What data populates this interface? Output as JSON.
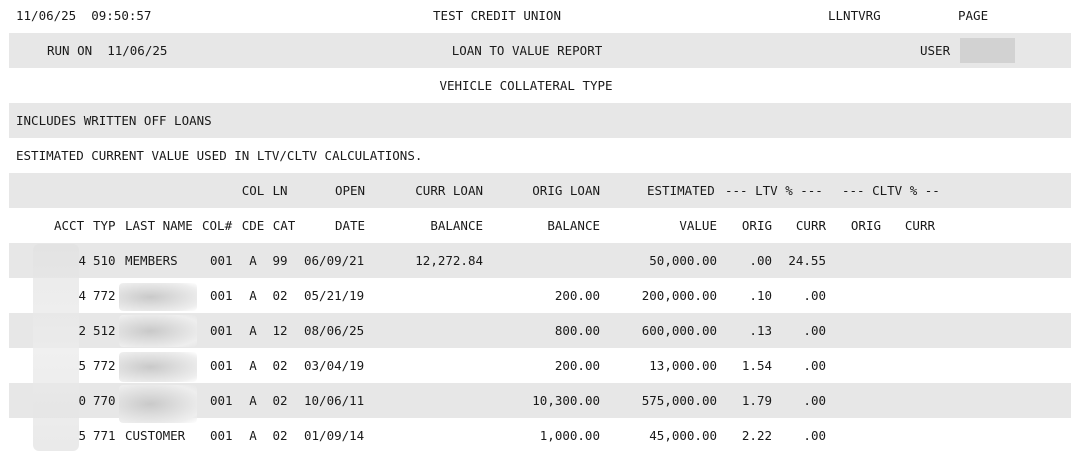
{
  "header": {
    "datetime": "11/06/25  09:50:57",
    "org": "TEST CREDIT UNION",
    "program": "LLNTVRG",
    "page_label": "PAGE",
    "run_on": "RUN ON  11/06/25",
    "report_title": "LOAN TO VALUE REPORT",
    "user_label": "USER",
    "collateral_type": "VEHICLE COLLATERAL TYPE",
    "note1": "INCLUDES WRITTEN OFF LOANS",
    "note2": "ESTIMATED CURRENT VALUE USED IN LTV/CLTV CALCULATIONS."
  },
  "columns": {
    "top": {
      "col": "COL",
      "ln": "LN",
      "open": "OPEN",
      "curr_loan": "CURR LOAN",
      "orig_loan": "ORIG LOAN",
      "estimated": "ESTIMATED",
      "ltv_group": "--- LTV % ---",
      "cltv_group": "--- CLTV % --"
    },
    "bottom": {
      "acct": "ACCT",
      "typ": "TYP",
      "last_name": "LAST NAME",
      "col_num": "COL#",
      "cde": "CDE",
      "cat": "CAT",
      "date": "DATE",
      "curr_balance": "BALANCE",
      "orig_balance": "BALANCE",
      "value": "VALUE",
      "ltv_orig": "ORIG",
      "ltv_curr": "CURR",
      "cltv_orig": "ORIG",
      "cltv_curr": "CURR"
    }
  },
  "rows": [
    {
      "acct": "4",
      "typ": "510",
      "last_name": "MEMBERS",
      "col": "001",
      "cde": "A",
      "cat": "99",
      "date": "06/09/21",
      "curr_loan": "12,272.84",
      "orig_loan": "",
      "value": "50,000.00",
      "ltv_orig": ".00",
      "ltv_curr": "24.55"
    },
    {
      "acct": "4",
      "typ": "772",
      "last_name": "",
      "col": "001",
      "cde": "A",
      "cat": "02",
      "date": "05/21/19",
      "curr_loan": "",
      "orig_loan": "200.00",
      "value": "200,000.00",
      "ltv_orig": ".10",
      "ltv_curr": ".00"
    },
    {
      "acct": "2",
      "typ": "512",
      "last_name": "",
      "col": "001",
      "cde": "A",
      "cat": "12",
      "date": "08/06/25",
      "curr_loan": "",
      "orig_loan": "800.00",
      "value": "600,000.00",
      "ltv_orig": ".13",
      "ltv_curr": ".00"
    },
    {
      "acct": "5",
      "typ": "772",
      "last_name": "",
      "col": "001",
      "cde": "A",
      "cat": "02",
      "date": "03/04/19",
      "curr_loan": "",
      "orig_loan": "200.00",
      "value": "13,000.00",
      "ltv_orig": "1.54",
      "ltv_curr": ".00"
    },
    {
      "acct": "0",
      "typ": "770",
      "last_name": "",
      "col": "001",
      "cde": "A",
      "cat": "02",
      "date": "10/06/11",
      "curr_loan": "",
      "orig_loan": "10,300.00",
      "value": "575,000.00",
      "ltv_orig": "1.79",
      "ltv_curr": ".00"
    },
    {
      "acct": "5",
      "typ": "771",
      "last_name": "CUSTOMER",
      "col": "001",
      "cde": "A",
      "cat": "02",
      "date": "01/09/14",
      "curr_loan": "",
      "orig_loan": "1,000.00",
      "value": "45,000.00",
      "ltv_orig": "2.22",
      "ltv_curr": ".00"
    }
  ]
}
